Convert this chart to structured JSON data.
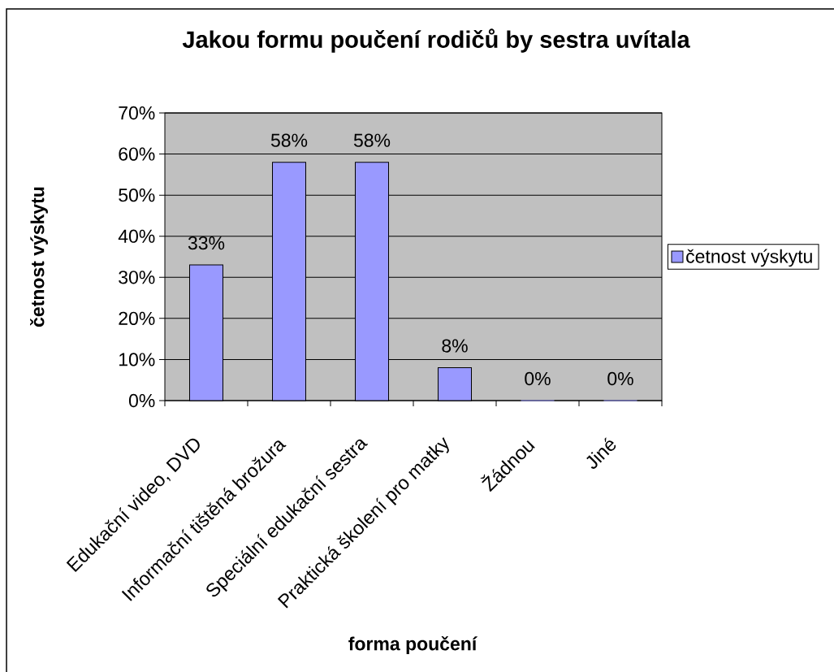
{
  "chart_data": {
    "type": "bar",
    "title": "Jakou formu poučení rodičů by sestra uvítala",
    "xlabel": "forma poučení",
    "ylabel": "četnost výskytu",
    "categories": [
      "Edukační video, DVD",
      "Informační tištěná brožura",
      "Speciální edukační sestra",
      "Praktická školení pro matky",
      "Žádnou",
      "Jiné"
    ],
    "series": [
      {
        "name": "četnost výskytu",
        "color": "#9999ff",
        "values": [
          33,
          58,
          58,
          8,
          0,
          0
        ],
        "value_labels": [
          "33%",
          "58%",
          "58%",
          "8%",
          "0%",
          "0%"
        ]
      }
    ],
    "ylim": [
      0,
      70
    ],
    "yticks": [
      {
        "value": 0,
        "label": "0%"
      },
      {
        "value": 10,
        "label": "10%"
      },
      {
        "value": 20,
        "label": "20%"
      },
      {
        "value": 30,
        "label": "30%"
      },
      {
        "value": 40,
        "label": "40%"
      },
      {
        "value": 50,
        "label": "50%"
      },
      {
        "value": 60,
        "label": "60%"
      },
      {
        "value": 70,
        "label": "70%"
      }
    ],
    "grid": "y",
    "legend": "right"
  }
}
